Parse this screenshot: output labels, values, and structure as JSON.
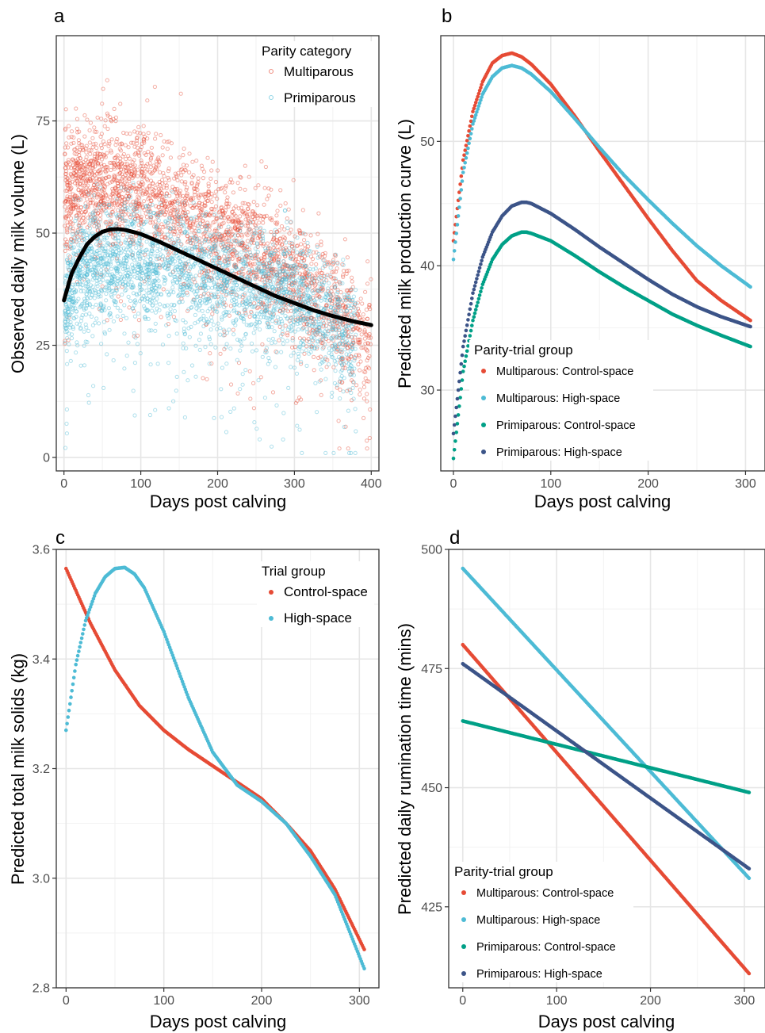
{
  "chart_data": [
    {
      "id": "a",
      "panel_label": "a",
      "type": "scatter",
      "xlabel": "Days post calving",
      "ylabel": "Observed daily milk volume (L)",
      "xlim": [
        -10,
        410
      ],
      "ylim": [
        -3,
        94
      ],
      "xticks": [
        0,
        100,
        200,
        300,
        400
      ],
      "yticks": [
        0,
        25,
        50,
        75
      ],
      "grid": true,
      "legend": {
        "title": "Parity category",
        "position": "top-right"
      },
      "series": [
        {
          "name": "Multiparous",
          "color": "#E64B35",
          "mean_curve": {
            "x": [
              2,
              10,
              20,
              40,
              60,
              80,
              100,
              150,
              200,
              250,
              300,
              350,
              400
            ],
            "y": [
              57,
              60,
              61,
              62,
              62,
              61,
              60,
              55,
              50,
              45,
              40,
              33,
              25
            ]
          },
          "x_range": [
            1,
            400
          ],
          "y_range": [
            2,
            89
          ]
        },
        {
          "name": "Primiparous",
          "color": "#4DBBD5",
          "mean_curve": {
            "x": [
              2,
              10,
              20,
              40,
              60,
              80,
              100,
              150,
              200,
              250,
              300,
              350,
              380
            ],
            "y": [
              33,
              38,
              41,
              43,
              44,
              44,
              43,
              42,
              40,
              38,
              35,
              30,
              25
            ]
          },
          "x_range": [
            1,
            380
          ],
          "y_range": [
            1,
            62
          ]
        }
      ],
      "overall_curve": {
        "color": "#000000",
        "x": [
          0,
          10,
          20,
          30,
          40,
          50,
          60,
          70,
          80,
          100,
          125,
          150,
          175,
          200,
          225,
          250,
          275,
          300,
          325,
          350,
          375,
          400
        ],
        "y": [
          35,
          41,
          44.5,
          47.5,
          49.2,
          50.3,
          50.8,
          50.9,
          50.7,
          49.8,
          48,
          46,
          44,
          42,
          40,
          38,
          36,
          34.4,
          32.8,
          31.5,
          30.4,
          29.5
        ]
      }
    },
    {
      "id": "b",
      "panel_label": "b",
      "type": "line",
      "xlabel": "Days post calving",
      "ylabel": "Predicted milk production curve (L)",
      "xlim": [
        -13,
        320
      ],
      "ylim": [
        23.5,
        58.5
      ],
      "xticks": [
        0,
        100,
        200,
        300
      ],
      "yticks": [
        30,
        40,
        50
      ],
      "grid": true,
      "legend": {
        "title": "Parity-trial group",
        "position": "bottom-left"
      },
      "series": [
        {
          "name": "Multiparous: Control-space",
          "color": "#E64B35",
          "x": [
            0,
            10,
            20,
            30,
            40,
            50,
            60,
            70,
            80,
            100,
            125,
            150,
            175,
            200,
            225,
            250,
            275,
            305
          ],
          "y": [
            42,
            48.5,
            52.4,
            54.8,
            56.3,
            56.9,
            57.1,
            56.8,
            56.2,
            54.6,
            52,
            49.2,
            46.5,
            43.8,
            41.2,
            38.8,
            37.2,
            35.6
          ]
        },
        {
          "name": "Multiparous: High-space",
          "color": "#4DBBD5",
          "x": [
            0,
            10,
            20,
            30,
            40,
            50,
            60,
            70,
            80,
            100,
            125,
            150,
            175,
            200,
            225,
            250,
            275,
            305
          ],
          "y": [
            40.5,
            47.5,
            51.4,
            53.8,
            55.2,
            55.9,
            56.1,
            55.9,
            55.4,
            54,
            51.8,
            49.5,
            47.3,
            45.3,
            43.4,
            41.6,
            40,
            38.3
          ]
        },
        {
          "name": "Primiparous: Control-space",
          "color": "#00A087",
          "x": [
            0,
            10,
            20,
            30,
            40,
            50,
            60,
            70,
            75,
            80,
            100,
            125,
            150,
            175,
            200,
            225,
            250,
            275,
            305
          ],
          "y": [
            24.5,
            31.5,
            35.6,
            38.5,
            40.5,
            41.7,
            42.4,
            42.7,
            42.7,
            42.6,
            42,
            40.8,
            39.5,
            38.3,
            37.2,
            36.1,
            35.2,
            34.4,
            33.5
          ]
        },
        {
          "name": "Primiparous: High-space",
          "color": "#3C5488",
          "x": [
            0,
            10,
            20,
            30,
            40,
            50,
            60,
            70,
            75,
            80,
            100,
            125,
            150,
            175,
            200,
            225,
            250,
            275,
            305
          ],
          "y": [
            26.5,
            33.5,
            37.8,
            40.7,
            42.7,
            44,
            44.8,
            45.1,
            45.1,
            45,
            44.2,
            42.9,
            41.5,
            40.2,
            38.9,
            37.7,
            36.7,
            35.9,
            35.1
          ]
        }
      ]
    },
    {
      "id": "c",
      "panel_label": "c",
      "type": "line",
      "xlabel": "Days post calving",
      "ylabel": "Predicted total milk solids (kg)",
      "xlim": [
        -10,
        320
      ],
      "ylim": [
        2.8,
        3.6
      ],
      "xticks": [
        0,
        100,
        200,
        300
      ],
      "yticks": [
        2.8,
        3.0,
        3.2,
        3.4,
        3.6
      ],
      "ytick_labels": [
        "2.8",
        "3.0",
        "3.2",
        "3.4",
        "3.6"
      ],
      "grid": true,
      "legend": {
        "title": "Trial group",
        "position": "top-right"
      },
      "series": [
        {
          "name": "Control-space",
          "color": "#E64B35",
          "x": [
            0,
            25,
            50,
            75,
            100,
            125,
            150,
            175,
            200,
            225,
            250,
            275,
            305
          ],
          "y": [
            3.565,
            3.465,
            3.38,
            3.315,
            3.27,
            3.235,
            3.205,
            3.175,
            3.145,
            3.1,
            3.05,
            2.98,
            2.87
          ]
        },
        {
          "name": "High-space",
          "color": "#4DBBD5",
          "x": [
            0,
            10,
            20,
            30,
            40,
            50,
            60,
            70,
            80,
            100,
            125,
            150,
            175,
            200,
            225,
            250,
            275,
            305
          ],
          "y": [
            3.27,
            3.39,
            3.47,
            3.52,
            3.55,
            3.565,
            3.567,
            3.555,
            3.53,
            3.45,
            3.33,
            3.23,
            3.17,
            3.14,
            3.1,
            3.04,
            2.97,
            2.835
          ]
        }
      ]
    },
    {
      "id": "d",
      "panel_label": "d",
      "type": "line",
      "xlabel": "Days post calving",
      "ylabel": "Predicted daily rumination time (mins)",
      "xlim": [
        -15,
        322
      ],
      "ylim": [
        408,
        500
      ],
      "xticks": [
        0,
        100,
        200,
        300
      ],
      "yticks": [
        425,
        450,
        475,
        500
      ],
      "grid": true,
      "legend": {
        "title": "Parity-trial group",
        "position": "bottom-left"
      },
      "series": [
        {
          "name": "Multiparous: Control-space",
          "color": "#E64B35",
          "x": [
            0,
            305
          ],
          "y": [
            480,
            411
          ]
        },
        {
          "name": "Multiparous: High-space",
          "color": "#4DBBD5",
          "x": [
            0,
            305
          ],
          "y": [
            496,
            431
          ]
        },
        {
          "name": "Primiparous: Control-space",
          "color": "#00A087",
          "x": [
            0,
            305
          ],
          "y": [
            464,
            449
          ]
        },
        {
          "name": "Primiparous: High-space",
          "color": "#3C5488",
          "x": [
            0,
            305
          ],
          "y": [
            476,
            433
          ]
        }
      ]
    }
  ]
}
